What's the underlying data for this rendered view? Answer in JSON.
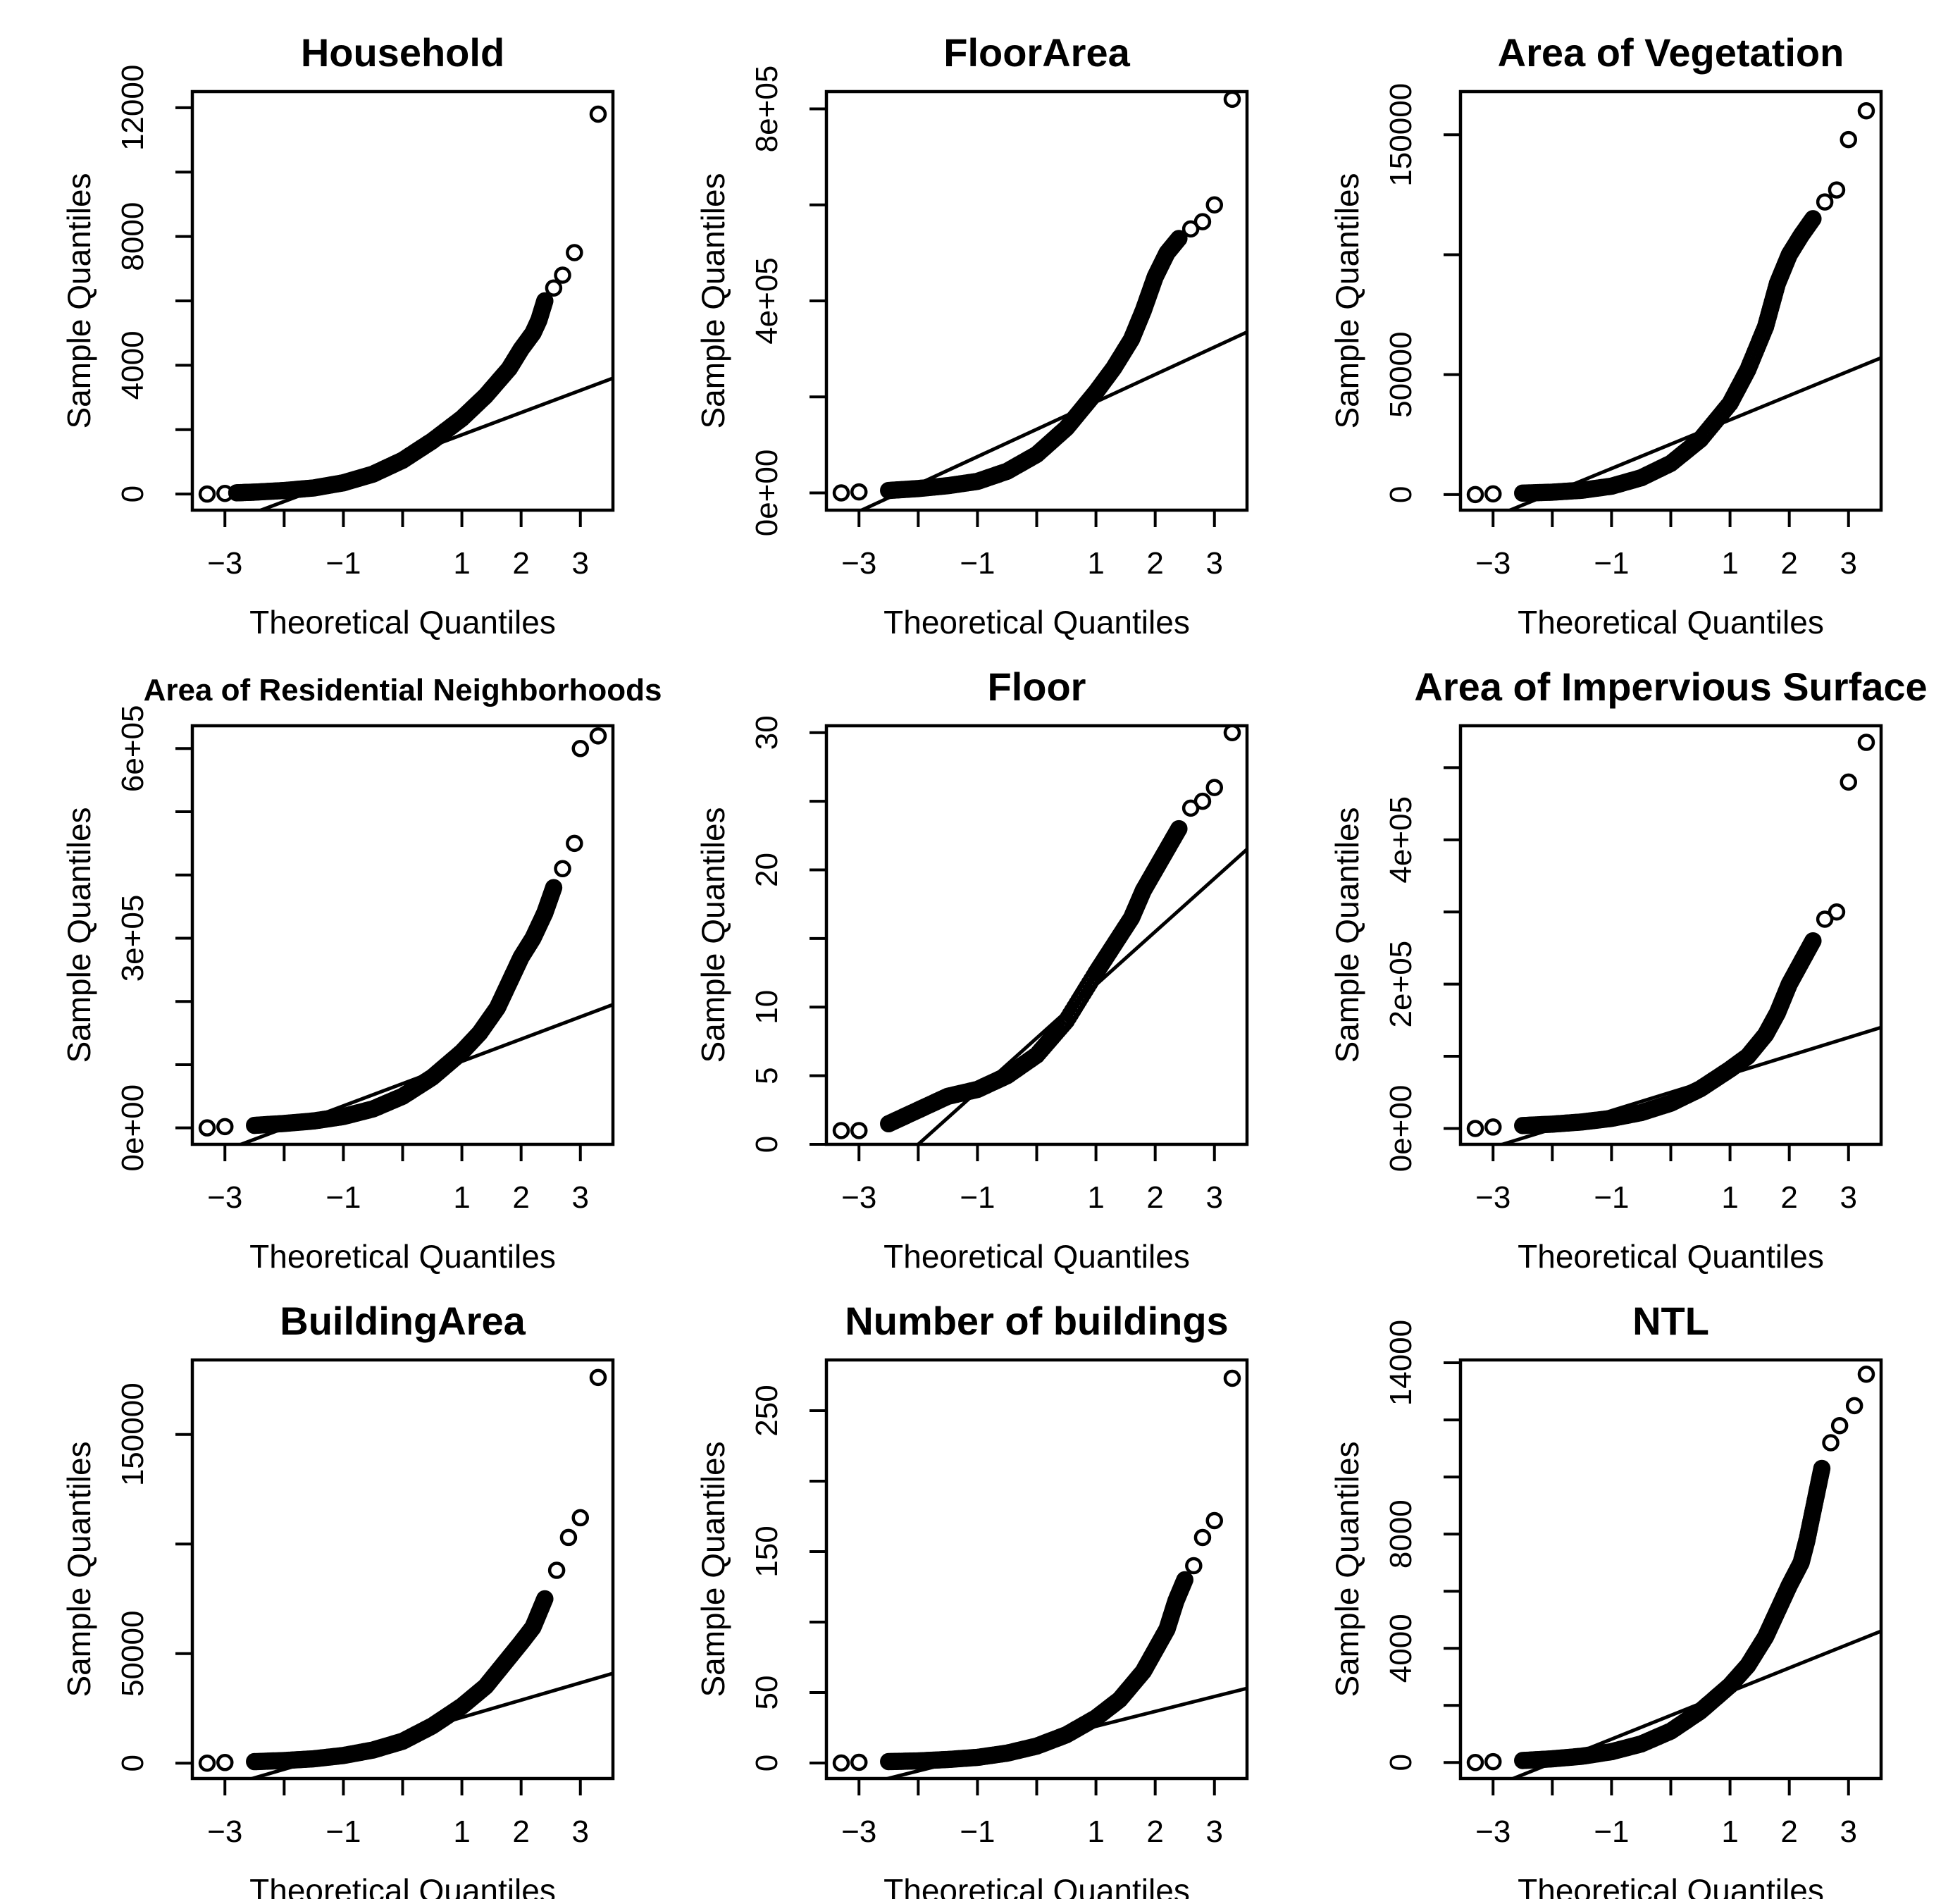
{
  "figure": {
    "x_axis_label": "Theoretical Quantiles",
    "y_axis_label": "Sample Quantiles"
  },
  "chart_data": [
    {
      "type": "scatter",
      "title": "Household",
      "xlabel": "Theoretical Quantiles",
      "ylabel": "Sample Quantiles",
      "xlim": [
        -3.55,
        3.55
      ],
      "ylim": [
        -500,
        12500
      ],
      "xticks": [
        -3,
        -2,
        -1,
        0,
        1,
        2,
        3
      ],
      "xtick_labels": [
        "−3",
        "",
        "−1",
        "",
        "1",
        "2",
        "3"
      ],
      "yticks": [
        0,
        4000,
        8000,
        12000
      ],
      "ytick_labels": [
        "0",
        "4000",
        "8000",
        "12000"
      ],
      "minor_yticks": [
        2000,
        6000,
        10000
      ],
      "ref_line": {
        "x0": -3.55,
        "y0": -1300,
        "x1": 3.55,
        "y1": 3600
      },
      "quantiles": [
        [
          -3.3,
          0
        ],
        [
          -3.0,
          20
        ],
        [
          -2.8,
          40
        ],
        [
          -2.5,
          60
        ],
        [
          -2.0,
          110
        ],
        [
          -1.5,
          190
        ],
        [
          -1.0,
          350
        ],
        [
          -0.5,
          620
        ],
        [
          0.0,
          1050
        ],
        [
          0.5,
          1650
        ],
        [
          1.0,
          2350
        ],
        [
          1.4,
          3050
        ],
        [
          1.8,
          3900
        ],
        [
          2.0,
          4500
        ],
        [
          2.2,
          5000
        ],
        [
          2.3,
          5400
        ],
        [
          2.4,
          6000
        ],
        [
          2.55,
          6400
        ],
        [
          2.7,
          6800
        ],
        [
          2.9,
          7500
        ],
        [
          3.3,
          11800
        ]
      ]
    },
    {
      "type": "scatter",
      "title": "FloorArea",
      "xlabel": "Theoretical Quantiles",
      "ylabel": "Sample Quantiles",
      "xlim": [
        -3.55,
        3.55
      ],
      "ylim": [
        -36000,
        836000
      ],
      "xticks": [
        -3,
        -2,
        -1,
        0,
        1,
        2,
        3
      ],
      "xtick_labels": [
        "−3",
        "",
        "−1",
        "",
        "1",
        "2",
        "3"
      ],
      "yticks": [
        0,
        400000,
        800000
      ],
      "ytick_labels": [
        "0e+00",
        "4e+05",
        "8e+05"
      ],
      "minor_yticks": [
        200000,
        600000
      ],
      "ref_line": {
        "x0": -3.55,
        "y0": -70000,
        "x1": 3.55,
        "y1": 335000
      },
      "quantiles": [
        [
          -3.3,
          0
        ],
        [
          -3.0,
          2000
        ],
        [
          -2.5,
          5000
        ],
        [
          -2.0,
          9000
        ],
        [
          -1.5,
          15000
        ],
        [
          -1.0,
          24000
        ],
        [
          -0.5,
          45000
        ],
        [
          0.0,
          80000
        ],
        [
          0.5,
          135000
        ],
        [
          0.8,
          180000
        ],
        [
          1.0,
          210000
        ],
        [
          1.3,
          260000
        ],
        [
          1.6,
          320000
        ],
        [
          1.8,
          380000
        ],
        [
          2.0,
          450000
        ],
        [
          2.2,
          500000
        ],
        [
          2.4,
          530000
        ],
        [
          2.6,
          550000
        ],
        [
          2.8,
          565000
        ],
        [
          3.0,
          600000
        ],
        [
          3.3,
          820000
        ]
      ]
    },
    {
      "type": "scatter",
      "title": "Area of Vegetation",
      "xlabel": "Theoretical Quantiles",
      "ylabel": "Sample Quantiles",
      "xlim": [
        -3.55,
        3.55
      ],
      "ylim": [
        -6500,
        168000
      ],
      "xticks": [
        -3,
        -2,
        -1,
        0,
        1,
        2,
        3
      ],
      "xtick_labels": [
        "−3",
        "",
        "−1",
        "",
        "1",
        "2",
        "3"
      ],
      "yticks": [
        0,
        50000,
        150000
      ],
      "ytick_labels": [
        "0",
        "50000",
        "150000"
      ],
      "minor_yticks": [
        100000
      ],
      "ref_line": {
        "x0": -3.55,
        "y0": -15000,
        "x1": 3.55,
        "y1": 57000
      },
      "quantiles": [
        [
          -3.3,
          0
        ],
        [
          -3.0,
          300
        ],
        [
          -2.5,
          600
        ],
        [
          -2.0,
          1000
        ],
        [
          -1.5,
          1800
        ],
        [
          -1.0,
          3500
        ],
        [
          -0.5,
          7000
        ],
        [
          0.0,
          13000
        ],
        [
          0.5,
          23000
        ],
        [
          1.0,
          38000
        ],
        [
          1.3,
          52000
        ],
        [
          1.6,
          70000
        ],
        [
          1.8,
          88000
        ],
        [
          2.0,
          100000
        ],
        [
          2.2,
          108000
        ],
        [
          2.4,
          115000
        ],
        [
          2.6,
          122000
        ],
        [
          2.8,
          127000
        ],
        [
          3.0,
          148000
        ],
        [
          3.3,
          160000
        ]
      ]
    },
    {
      "type": "scatter",
      "title": "Area of Residential Neighborhoods",
      "xlabel": "Theoretical Quantiles",
      "ylabel": "Sample Quantiles",
      "xlim": [
        -3.55,
        3.55
      ],
      "ylim": [
        -26000,
        636000
      ],
      "xticks": [
        -3,
        -2,
        -1,
        0,
        1,
        2,
        3
      ],
      "xtick_labels": [
        "−3",
        "",
        "−1",
        "",
        "1",
        "2",
        "3"
      ],
      "yticks": [
        0,
        300000,
        600000
      ],
      "ytick_labels": [
        "0e+00",
        "3e+05",
        "6e+05"
      ],
      "minor_yticks": [
        100000,
        200000,
        400000,
        500000
      ],
      "ref_line": {
        "x0": -3.55,
        "y0": -55000,
        "x1": 3.55,
        "y1": 195000
      },
      "quantiles": [
        [
          -3.3,
          0
        ],
        [
          -3.0,
          2000
        ],
        [
          -2.5,
          4000
        ],
        [
          -2.0,
          7000
        ],
        [
          -1.5,
          11000
        ],
        [
          -1.0,
          18000
        ],
        [
          -0.5,
          30000
        ],
        [
          0.0,
          50000
        ],
        [
          0.5,
          80000
        ],
        [
          1.0,
          120000
        ],
        [
          1.3,
          150000
        ],
        [
          1.6,
          190000
        ],
        [
          1.8,
          230000
        ],
        [
          2.0,
          270000
        ],
        [
          2.2,
          300000
        ],
        [
          2.4,
          340000
        ],
        [
          2.55,
          380000
        ],
        [
          2.7,
          410000
        ],
        [
          2.9,
          450000
        ],
        [
          3.0,
          600000
        ],
        [
          3.3,
          620000
        ]
      ]
    },
    {
      "type": "scatter",
      "title": "Floor",
      "xlabel": "Theoretical Quantiles",
      "ylabel": "Sample Quantiles",
      "xlim": [
        -3.55,
        3.55
      ],
      "ylim": [
        0,
        30.5
      ],
      "xticks": [
        -3,
        -2,
        -1,
        0,
        1,
        2,
        3
      ],
      "xtick_labels": [
        "−3",
        "",
        "−1",
        "",
        "1",
        "2",
        "3"
      ],
      "yticks": [
        0,
        5,
        10,
        20,
        30
      ],
      "ytick_labels": [
        "0",
        "5",
        "10",
        "20",
        "30"
      ],
      "minor_yticks": [
        15,
        25
      ],
      "ref_line": {
        "x0": -2.0,
        "y0": 0,
        "x1": 3.55,
        "y1": 21.5
      },
      "quantiles": [
        [
          -3.3,
          1
        ],
        [
          -3.0,
          1
        ],
        [
          -2.5,
          1.5
        ],
        [
          -2.0,
          2.5
        ],
        [
          -1.5,
          3.5
        ],
        [
          -1.0,
          4.0
        ],
        [
          -0.5,
          5.0
        ],
        [
          0.0,
          6.5
        ],
        [
          0.5,
          9.0
        ],
        [
          1.0,
          12.5
        ],
        [
          1.3,
          14.5
        ],
        [
          1.6,
          16.5
        ],
        [
          1.8,
          18.5
        ],
        [
          2.0,
          20.0
        ],
        [
          2.2,
          21.5
        ],
        [
          2.4,
          23.0
        ],
        [
          2.6,
          24.5
        ],
        [
          2.8,
          25.0
        ],
        [
          3.0,
          26.0
        ],
        [
          3.3,
          30.0
        ]
      ]
    },
    {
      "type": "scatter",
      "title": "Area of Impervious Surface",
      "xlabel": "Theoretical Quantiles",
      "ylabel": "Sample Quantiles",
      "xlim": [
        -3.55,
        3.55
      ],
      "ylim": [
        -22000,
        558000
      ],
      "xticks": [
        -3,
        -2,
        -1,
        0,
        1,
        2,
        3
      ],
      "xtick_labels": [
        "−3",
        "",
        "−1",
        "",
        "1",
        "2",
        "3"
      ],
      "yticks": [
        0,
        200000,
        400000
      ],
      "ytick_labels": [
        "0e+00",
        "2e+05",
        "4e+05"
      ],
      "minor_yticks": [
        100000,
        300000,
        500000
      ],
      "ref_line": {
        "x0": -3.55,
        "y0": -40000,
        "x1": 3.55,
        "y1": 140000
      },
      "quantiles": [
        [
          -3.3,
          0
        ],
        [
          -3.0,
          2000
        ],
        [
          -2.5,
          4000
        ],
        [
          -2.0,
          6000
        ],
        [
          -1.5,
          9000
        ],
        [
          -1.0,
          14000
        ],
        [
          -0.5,
          22000
        ],
        [
          0.0,
          35000
        ],
        [
          0.5,
          55000
        ],
        [
          1.0,
          82000
        ],
        [
          1.3,
          100000
        ],
        [
          1.6,
          130000
        ],
        [
          1.8,
          160000
        ],
        [
          2.0,
          200000
        ],
        [
          2.2,
          230000
        ],
        [
          2.4,
          260000
        ],
        [
          2.6,
          290000
        ],
        [
          2.8,
          300000
        ],
        [
          3.0,
          480000
        ],
        [
          3.3,
          535000
        ]
      ]
    },
    {
      "type": "scatter",
      "title": "BuildingArea",
      "xlabel": "Theoretical Quantiles",
      "ylabel": "Sample Quantiles",
      "xlim": [
        -3.55,
        3.55
      ],
      "ylim": [
        -7000,
        184000
      ],
      "xticks": [
        -3,
        -2,
        -1,
        0,
        1,
        2,
        3
      ],
      "xtick_labels": [
        "−3",
        "",
        "−1",
        "",
        "1",
        "2",
        "3"
      ],
      "yticks": [
        0,
        50000,
        150000
      ],
      "ytick_labels": [
        "0",
        "50000",
        "150000"
      ],
      "minor_yticks": [
        100000
      ],
      "ref_line": {
        "x0": -3.55,
        "y0": -15000,
        "x1": 3.55,
        "y1": 41000
      },
      "quantiles": [
        [
          -3.3,
          0
        ],
        [
          -3.0,
          300
        ],
        [
          -2.5,
          700
        ],
        [
          -2.0,
          1200
        ],
        [
          -1.5,
          2000
        ],
        [
          -1.0,
          3500
        ],
        [
          -0.5,
          6000
        ],
        [
          0.0,
          10000
        ],
        [
          0.5,
          17000
        ],
        [
          1.0,
          26000
        ],
        [
          1.4,
          35000
        ],
        [
          1.7,
          45000
        ],
        [
          2.0,
          55000
        ],
        [
          2.2,
          62000
        ],
        [
          2.4,
          75000
        ],
        [
          2.6,
          88000
        ],
        [
          2.8,
          103000
        ],
        [
          3.0,
          112000
        ],
        [
          3.3,
          176000
        ]
      ]
    },
    {
      "type": "scatter",
      "title": "Number of buildings",
      "xlabel": "Theoretical Quantiles",
      "ylabel": "Sample Quantiles",
      "xlim": [
        -3.55,
        3.55
      ],
      "ylim": [
        -11,
        286
      ],
      "xticks": [
        -3,
        -2,
        -1,
        0,
        1,
        2,
        3
      ],
      "xtick_labels": [
        "−3",
        "",
        "−1",
        "",
        "1",
        "2",
        "3"
      ],
      "yticks": [
        0,
        50,
        150,
        250
      ],
      "ytick_labels": [
        "0",
        "50",
        "150",
        "250"
      ],
      "minor_yticks": [
        100,
        200
      ],
      "ref_line": {
        "x0": -3.55,
        "y0": -22,
        "x1": 3.55,
        "y1": 53
      },
      "quantiles": [
        [
          -3.3,
          0
        ],
        [
          -3.0,
          0.5
        ],
        [
          -2.5,
          1
        ],
        [
          -2.0,
          1.5
        ],
        [
          -1.5,
          2.5
        ],
        [
          -1.0,
          4
        ],
        [
          -0.5,
          7
        ],
        [
          0.0,
          12
        ],
        [
          0.5,
          20
        ],
        [
          1.0,
          32
        ],
        [
          1.4,
          45
        ],
        [
          1.8,
          65
        ],
        [
          2.0,
          80
        ],
        [
          2.2,
          95
        ],
        [
          2.35,
          115
        ],
        [
          2.5,
          130
        ],
        [
          2.65,
          140
        ],
        [
          2.8,
          160
        ],
        [
          3.0,
          172
        ],
        [
          3.3,
          273
        ]
      ]
    },
    {
      "type": "scatter",
      "title": "NTL",
      "xlabel": "Theoretical Quantiles",
      "ylabel": "Sample Quantiles",
      "xlim": [
        -3.55,
        3.55
      ],
      "ylim": [
        -560,
        14100
      ],
      "xticks": [
        -3,
        -2,
        -1,
        0,
        1,
        2,
        3
      ],
      "xtick_labels": [
        "−3",
        "",
        "−1",
        "",
        "1",
        "2",
        "3"
      ],
      "yticks": [
        0,
        4000,
        8000,
        14000
      ],
      "ytick_labels": [
        "0",
        "4000",
        "8000",
        "14000"
      ],
      "minor_yticks": [
        2000,
        6000,
        10000,
        12000
      ],
      "ref_line": {
        "x0": -3.55,
        "y0": -1300,
        "x1": 3.55,
        "y1": 4600
      },
      "quantiles": [
        [
          -3.3,
          0
        ],
        [
          -3.0,
          30
        ],
        [
          -2.5,
          70
        ],
        [
          -2.0,
          130
        ],
        [
          -1.5,
          220
        ],
        [
          -1.0,
          380
        ],
        [
          -0.5,
          650
        ],
        [
          0.0,
          1100
        ],
        [
          0.5,
          1800
        ],
        [
          1.0,
          2700
        ],
        [
          1.3,
          3400
        ],
        [
          1.6,
          4400
        ],
        [
          1.8,
          5300
        ],
        [
          2.0,
          6200
        ],
        [
          2.2,
          7000
        ],
        [
          2.3,
          7800
        ],
        [
          2.45,
          9300
        ],
        [
          2.55,
          10300
        ],
        [
          2.7,
          11200
        ],
        [
          2.85,
          11800
        ],
        [
          3.1,
          12500
        ],
        [
          3.3,
          13600
        ]
      ]
    }
  ]
}
